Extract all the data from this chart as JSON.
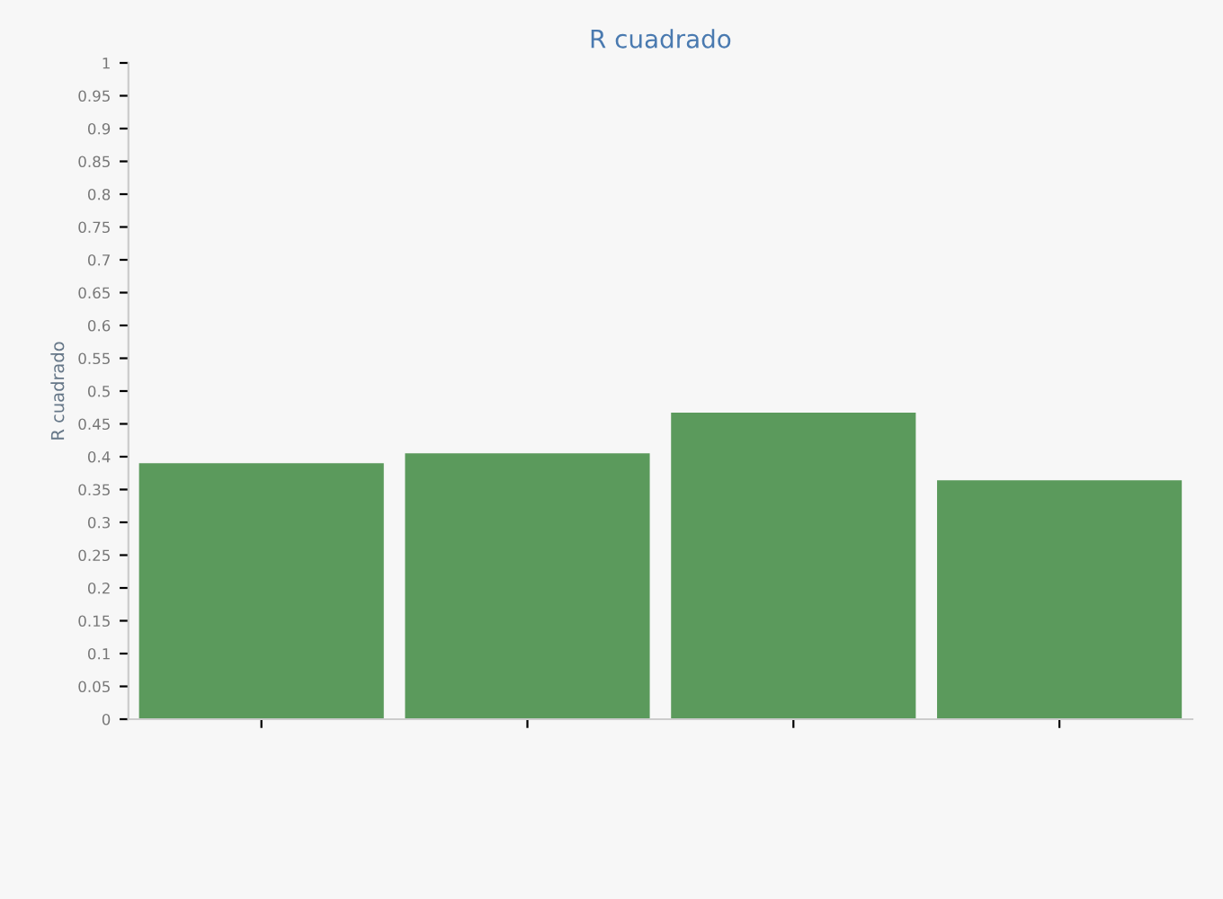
{
  "chart_data": {
    "type": "bar",
    "title": "R cuadrado",
    "ylabel": "R cuadrado",
    "categories": [
      null,
      null,
      null,
      null
    ],
    "values": [
      0.39,
      0.405,
      0.467,
      0.364
    ],
    "color": "#5b9a5c",
    "ylim": [
      0,
      1
    ],
    "yticks": [
      0,
      0.05,
      0.1,
      0.15,
      0.2,
      0.25,
      0.3,
      0.35,
      0.4,
      0.45,
      0.5,
      0.55,
      0.6,
      0.65,
      0.7,
      0.75,
      0.8,
      0.85,
      0.9,
      0.95,
      1
    ],
    "grid": false
  }
}
